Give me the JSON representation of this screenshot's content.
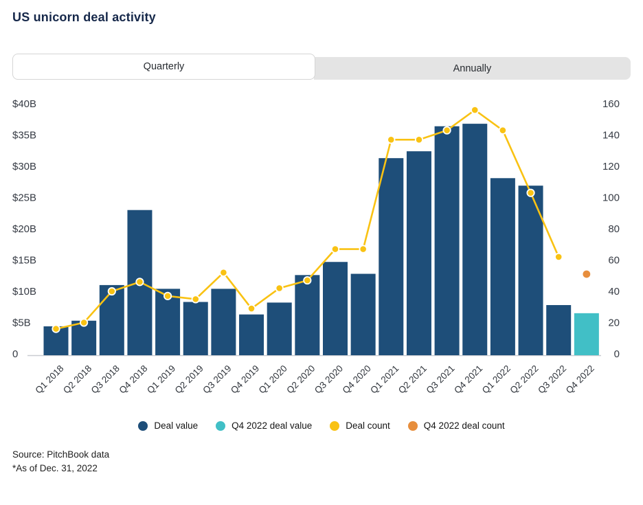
{
  "title": "US unicorn deal activity",
  "tabs": [
    {
      "label": "Quarterly",
      "active": true
    },
    {
      "label": "Annually",
      "active": false
    }
  ],
  "chart_data": {
    "type": "combo: bar (deal value, left axis) + line/scatter (deal count, right axis)",
    "categories": [
      "Q1 2018",
      "Q2 2018",
      "Q3 2018",
      "Q4 2018",
      "Q1 2019",
      "Q2 2019",
      "Q3 2019",
      "Q4 2019",
      "Q1 2020",
      "Q2 2020",
      "Q3 2020",
      "Q4 2020",
      "Q1 2021",
      "Q2 2021",
      "Q3 2021",
      "Q4 2021",
      "Q1 2022",
      "Q2 2022",
      "Q3 2022",
      "Q4 2022"
    ],
    "series": [
      {
        "name": "Deal value",
        "type": "bar",
        "axis": "left",
        "unit": "USD billions",
        "color": "#1E4E79",
        "values": [
          4.4,
          5.3,
          11.0,
          23.0,
          10.4,
          8.3,
          10.4,
          6.3,
          8.2,
          12.6,
          14.7,
          12.8,
          31.3,
          32.4,
          36.4,
          36.8,
          28.1,
          26.9,
          7.8,
          null
        ]
      },
      {
        "name": "Q4 2022 deal value",
        "type": "bar",
        "axis": "left",
        "unit": "USD billions",
        "color": "#41BFC6",
        "values": [
          null,
          null,
          null,
          null,
          null,
          null,
          null,
          null,
          null,
          null,
          null,
          null,
          null,
          null,
          null,
          null,
          null,
          null,
          null,
          6.5
        ]
      },
      {
        "name": "Deal count",
        "type": "line",
        "axis": "right",
        "color": "#F9C213",
        "values": [
          16,
          20,
          40,
          46,
          37,
          35,
          52,
          29,
          42,
          47,
          67,
          67,
          137,
          137,
          143,
          156,
          143,
          103,
          62,
          null
        ]
      },
      {
        "name": "Q4 2022 deal count",
        "type": "scatter",
        "axis": "right",
        "color": "#E78E3D",
        "values": [
          null,
          null,
          null,
          null,
          null,
          null,
          null,
          null,
          null,
          null,
          null,
          null,
          null,
          null,
          null,
          null,
          null,
          null,
          null,
          51
        ]
      }
    ],
    "left_axis": {
      "ticks": [
        "$40B",
        "$35B",
        "$30B",
        "$25B",
        "$20B",
        "$15B",
        "$10B",
        "$5B",
        "0"
      ],
      "min": 0,
      "max": 40
    },
    "right_axis": {
      "ticks": [
        "160",
        "140",
        "120",
        "100",
        "80",
        "60",
        "40",
        "20",
        "0"
      ],
      "min": 0,
      "max": 160
    },
    "grid": false,
    "legend_position": "bottom"
  },
  "legend": [
    {
      "label": "Deal value",
      "color": "#1E4E79"
    },
    {
      "label": "Q4 2022 deal value",
      "color": "#41BFC6"
    },
    {
      "label": "Deal count",
      "color": "#F9C213"
    },
    {
      "label": "Q4 2022 deal count",
      "color": "#E78E3D"
    }
  ],
  "source": {
    "line1": "Source: PitchBook data",
    "line2": "*As of Dec. 31, 2022"
  }
}
